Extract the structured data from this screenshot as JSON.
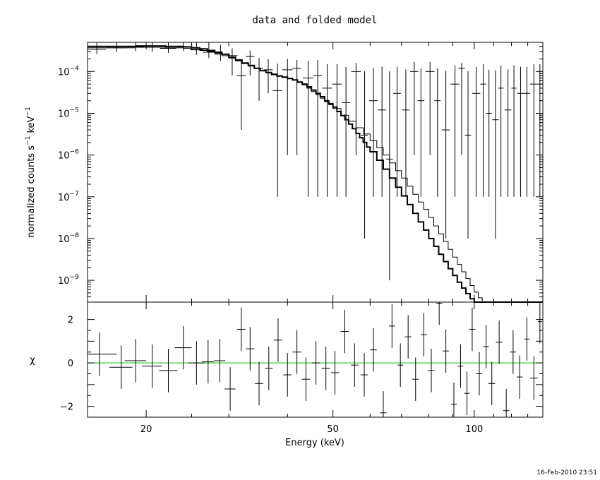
{
  "title": "data and folded model",
  "timestamp": "16-Feb-2010 23:51",
  "colors": {
    "axes": "#000000",
    "model": "#000000",
    "zero_line": "#00c000"
  },
  "chart_data": [
    {
      "type": "scatter",
      "panel": "spectrum",
      "ylabel": "normalized counts s^-1 keV^-1",
      "ylabel_parts": {
        "main": "normalized counts s",
        "sup1": "−1",
        "mid": " keV",
        "sup2": "−1"
      },
      "xscale": "log",
      "yscale": "log",
      "xlim": [
        15,
        140
      ],
      "ylim": [
        3e-10,
        0.0005
      ],
      "yticks": [
        {
          "value": 0.0001,
          "mant": "10",
          "exp": "−4"
        },
        {
          "value": 1e-05,
          "mant": "10",
          "exp": "−5"
        },
        {
          "value": 1e-06,
          "mant": "10",
          "exp": "−6"
        },
        {
          "value": 1e-07,
          "mant": "10",
          "exp": "−7"
        },
        {
          "value": 1e-08,
          "mant": "10",
          "exp": "−8"
        },
        {
          "value": 1e-09,
          "mant": "10",
          "exp": "−9"
        }
      ],
      "series": [
        {
          "role": "data-errorbars",
          "points": [
            [
              15.7,
              0.00034,
              0.7,
              8e-05,
              0.0003
            ],
            [
              17.3,
              0.00037,
              0.9,
              8e-05,
              0.0003
            ],
            [
              19.0,
              0.00039,
              0.8,
              8e-05,
              0.0003
            ],
            [
              20.6,
              0.00038,
              0.8,
              8e-05,
              0.0003
            ],
            [
              22.3,
              0.00036,
              0.9,
              8e-05,
              0.0003
            ],
            [
              24.0,
              0.00039,
              0.8,
              8e-05,
              0.0003
            ],
            [
              25.6,
              0.00033,
              0.8,
              8e-05,
              0.0003
            ],
            [
              27.2,
              0.00029,
              0.8,
              8e-05,
              0.0002
            ],
            [
              28.8,
              0.00026,
              0.8,
              8e-05,
              0.00018
            ],
            [
              30.5,
              0.00024,
              0.8,
              0.00016,
              0.00012
            ],
            [
              31.9,
              8e-05,
              0.7,
              7.6e-05,
              0.0001
            ],
            [
              33.3,
              0.00023,
              0.7,
              0.00015,
              9e-05
            ],
            [
              34.8,
              0.00012,
              0.7,
              0.0001,
              9e-05
            ],
            [
              36.4,
              0.00011,
              0.8,
              8e-05,
              9e-05
            ],
            [
              38.1,
              3.5e-05,
              0.9,
              3.49e-05,
              0.00012
            ],
            [
              40.0,
              0.00011,
              1.0,
              0.000109,
              9e-05
            ],
            [
              41.9,
              0.00012,
              0.9,
              0.000119,
              7e-05
            ],
            [
              44.3,
              7e-05,
              1.2,
              6.99e-05,
              0.00011
            ],
            [
              46.4,
              8e-05,
              1.0,
              7.99e-05,
              0.00011
            ],
            [
              48.6,
              4e-05,
              1.2,
              3.99e-05,
              0.00011
            ],
            [
              51.0,
              5e-05,
              1.2,
              4.99e-05,
              0.0001
            ],
            [
              53.3,
              1.8e-05,
              1.1,
              1.79e-05,
              0.00011
            ],
            [
              56.0,
              0.0001,
              1.3,
              9.9e-05,
              6e-05
            ],
            [
              58.4,
              3e-06,
              1.0,
              2.99e-06,
              0.0001
            ],
            [
              61.0,
              2e-05,
              1.3,
              1.99e-05,
              0.0001
            ],
            [
              63.6,
              1.2e-05,
              1.3,
              1.19e-05,
              0.00012
            ],
            [
              66.0,
              8e-07,
              1.1,
              7.99e-07,
              0.0001
            ],
            [
              68.5,
              3e-05,
              1.3,
              2.99e-05,
              0.0001
            ],
            [
              71.5,
              1.2e-05,
              1.3,
              1.19e-05,
              0.0001
            ],
            [
              74.5,
              0.0001,
              1.5,
              9.9e-05,
              7e-05
            ],
            [
              77.0,
              2e-05,
              1.3,
              1.99e-05,
              0.0001
            ],
            [
              80.5,
              0.0001,
              1.8,
              9.9e-05,
              7e-05
            ],
            [
              83.5,
              2e-05,
              1.3,
              1.99e-05,
              0.0001
            ],
            [
              87.0,
              4e-06,
              1.7,
              3.99e-06,
              0.0001
            ],
            [
              91.0,
              5e-05,
              2.0,
              4.99e-05,
              9e-05
            ],
            [
              94.0,
              0.00012,
              1.5,
              0.000119,
              4e-05
            ],
            [
              97.0,
              3e-06,
              1.5,
              2.99e-06,
              0.0001
            ],
            [
              101.0,
              3e-05,
              2.0,
              2.99e-05,
              0.0001
            ],
            [
              104.5,
              5e-05,
              1.5,
              4.99e-05,
              0.0001
            ],
            [
              107.5,
              1e-05,
              1.5,
              9.9e-06,
              0.0001
            ],
            [
              111.0,
              7e-06,
              1.8,
              6.99e-06,
              0.0001
            ],
            [
              114.0,
              4e-05,
              1.5,
              3.99e-05,
              0.0001
            ],
            [
              118.0,
              1.2e-05,
              2.0,
              1.19e-05,
              0.0001
            ],
            [
              121.5,
              4e-05,
              1.5,
              3.99e-05,
              0.0001
            ],
            [
              125.5,
              3e-05,
              2.0,
              2.99e-05,
              0.0001
            ],
            [
              129.5,
              3e-05,
              2.0,
              2.99e-05,
              0.0001
            ],
            [
              134.0,
              5e-05,
              2.5,
              4.99e-05,
              0.0001
            ],
            [
              138.0,
              5e-05,
              1.5,
              4.99e-05,
              0.0001
            ]
          ]
        },
        {
          "role": "model-thick-step",
          "x": [
            15,
            16,
            17,
            18,
            19,
            20,
            21,
            22,
            23,
            24,
            25,
            26,
            27,
            28,
            29,
            30,
            31,
            32,
            33,
            34,
            35,
            36,
            37,
            38,
            39,
            40,
            41,
            42,
            43,
            44,
            45,
            46,
            47,
            48,
            49,
            50,
            51,
            52,
            53,
            54,
            55,
            56,
            57,
            58,
            59,
            60,
            62,
            64,
            66,
            68,
            70,
            72,
            74,
            76,
            78,
            80,
            82,
            84,
            86,
            88,
            90,
            92,
            94,
            96,
            98,
            100,
            102,
            104,
            106,
            108,
            110,
            112,
            114,
            116,
            118,
            120,
            122,
            124,
            126,
            128,
            130,
            132,
            134,
            136,
            138,
            140
          ],
          "y": [
            0.0004,
            0.0004,
            0.0004,
            0.0004,
            0.00041,
            0.00041,
            0.00041,
            0.0004,
            0.0004,
            0.00039,
            0.00037,
            0.00035,
            0.00032,
            0.00029,
            0.00026,
            0.00022,
            0.00019,
            0.00016,
            0.00014,
            0.00012,
            0.000105,
            9.5e-05,
            8.5e-05,
            7.8e-05,
            7.3e-05,
            6.8e-05,
            6.3e-05,
            5.6e-05,
            5e-05,
            4.3e-05,
            3.6e-05,
            3e-05,
            2.5e-05,
            2e-05,
            1.7e-05,
            1.4e-05,
            1.1e-05,
            8.8e-06,
            7e-06,
            5.5e-06,
            4.3e-06,
            3.3e-06,
            2.6e-06,
            2e-06,
            1.55e-06,
            1.2e-06,
            7.5e-07,
            4.6e-07,
            2.8e-07,
            1.7e-07,
            1.05e-07,
            6.5e-08,
            4e-08,
            2.5e-08,
            1.6e-08,
            1e-08,
            6.5e-09,
            4.2e-09,
            2.8e-09,
            1.9e-09,
            1.3e-09,
            9e-10,
            6.5e-10,
            4.8e-10,
            3.6e-10,
            3e-10,
            3e-10,
            3e-10,
            3e-10,
            3e-10,
            3e-10,
            3e-10,
            3e-10,
            3e-10,
            3e-10,
            3e-10,
            3e-10,
            3e-10,
            3e-10,
            3e-10,
            3e-10,
            3e-10,
            3e-10,
            3e-10,
            3e-10,
            3e-10
          ]
        },
        {
          "role": "model-thin-step",
          "x": [
            15,
            16,
            17,
            18,
            19,
            20,
            21,
            22,
            23,
            24,
            25,
            26,
            27,
            28,
            29,
            30,
            31,
            32,
            33,
            34,
            35,
            36,
            37,
            38,
            39,
            40,
            41,
            42,
            43,
            44,
            45,
            46,
            47,
            48,
            49,
            50,
            52,
            54,
            56,
            58,
            60,
            62,
            64,
            66,
            68,
            70,
            72,
            74,
            76,
            78,
            80,
            82,
            84,
            86,
            88,
            90,
            92,
            94,
            96,
            98,
            100,
            102,
            104,
            106,
            108,
            110,
            112,
            114,
            116,
            118,
            120,
            122,
            124,
            126,
            128,
            130,
            132,
            134,
            136,
            138,
            140
          ],
          "y": [
            0.00037,
            0.00037,
            0.00037,
            0.00037,
            0.00038,
            0.00038,
            0.00038,
            0.00037,
            0.00037,
            0.00036,
            0.00034,
            0.00032,
            0.0003,
            0.00027,
            0.00024,
            0.00021,
            0.00018,
            0.000155,
            0.000135,
            0.00012,
            0.000105,
            9.5e-05,
            8.8e-05,
            8e-05,
            7.5e-05,
            7e-05,
            6.3e-05,
            5.5e-05,
            4.8e-05,
            4e-05,
            3.3e-05,
            2.8e-05,
            2.3e-05,
            1.9e-05,
            1.6e-05,
            1.3e-05,
            9e-06,
            6.5e-06,
            4.5e-06,
            3.2e-06,
            2.2e-06,
            1.5e-06,
            1e-06,
            6.5e-07,
            4.2e-07,
            2.8e-07,
            1.8e-07,
            1.15e-07,
            7.5e-08,
            5e-08,
            3.2e-08,
            2e-08,
            1.3e-08,
            8.5e-09,
            5.5e-09,
            3.6e-09,
            2.4e-09,
            1.6e-09,
            1.1e-09,
            7.5e-10,
            5.2e-10,
            3.8e-10,
            3e-10,
            3e-10,
            3e-10,
            3e-10,
            3e-10,
            3e-10,
            3e-10,
            3e-10,
            3e-10,
            3e-10,
            3e-10,
            3e-10,
            3e-10,
            3e-10,
            3e-10,
            3e-10,
            3e-10,
            3e-10,
            3e-10
          ]
        }
      ]
    },
    {
      "type": "scatter",
      "panel": "residuals",
      "xlabel": "Energy (keV)",
      "ylabel": "χ",
      "xscale": "log",
      "xlim": [
        15,
        140
      ],
      "ylim": [
        -2.5,
        2.8
      ],
      "xticks": [
        {
          "value": 20,
          "label": "20"
        },
        {
          "value": 50,
          "label": "50"
        },
        {
          "value": 100,
          "label": "100"
        }
      ],
      "yticks": [
        {
          "value": 2,
          "label": "2"
        },
        {
          "value": 0,
          "label": "0"
        },
        {
          "value": -2,
          "label": "−2"
        }
      ],
      "zero_line": 0,
      "points": [
        [
          15.9,
          0.4,
          1.4,
          1.0
        ],
        [
          17.7,
          -0.2,
          1.0,
          1.0
        ],
        [
          19.0,
          0.1,
          1.0,
          1.0
        ],
        [
          20.6,
          -0.15,
          1.0,
          1.0
        ],
        [
          22.3,
          -0.35,
          1.0,
          1.0
        ],
        [
          24.0,
          0.7,
          1.0,
          1.0
        ],
        [
          25.6,
          0.0,
          1.0,
          1.0
        ],
        [
          27.1,
          0.05,
          0.8,
          1.0
        ],
        [
          28.7,
          0.1,
          0.8,
          1.0
        ],
        [
          30.2,
          -1.2,
          0.8,
          1.0
        ],
        [
          31.9,
          1.55,
          0.7,
          1.0
        ],
        [
          33.3,
          0.65,
          0.7,
          1.0
        ],
        [
          34.8,
          -0.95,
          0.7,
          1.0
        ],
        [
          36.5,
          -0.25,
          0.7,
          1.0
        ],
        [
          38.2,
          1.05,
          0.8,
          1.0
        ],
        [
          40.0,
          -0.55,
          0.8,
          1.0
        ],
        [
          41.9,
          0.5,
          0.9,
          1.0
        ],
        [
          43.8,
          -0.75,
          0.9,
          1.0
        ],
        [
          46.0,
          0.0,
          0.9,
          1.0
        ],
        [
          48.3,
          -0.25,
          1.0,
          1.0
        ],
        [
          50.5,
          -0.45,
          1.0,
          1.0
        ],
        [
          53.0,
          1.45,
          1.1,
          1.0
        ],
        [
          55.6,
          -0.1,
          1.0,
          1.0
        ],
        [
          58.3,
          -0.55,
          1.0,
          1.0
        ],
        [
          61.0,
          0.6,
          1.0,
          1.0
        ],
        [
          64.0,
          -2.3,
          1.0,
          1.0
        ],
        [
          66.8,
          1.7,
          1.0,
          1.0
        ],
        [
          69.6,
          -0.1,
          1.0,
          1.0
        ],
        [
          72.3,
          1.2,
          1.2,
          1.0
        ],
        [
          75.0,
          -0.75,
          1.2,
          1.0
        ],
        [
          78.1,
          1.3,
          1.2,
          1.0
        ],
        [
          81.0,
          -0.35,
          1.3,
          1.0
        ],
        [
          84.2,
          2.75,
          1.3,
          1.0
        ],
        [
          87.0,
          0.55,
          1.3,
          1.0
        ],
        [
          90.5,
          -1.9,
          1.3,
          1.0
        ],
        [
          93.5,
          -0.15,
          1.3,
          1.0
        ],
        [
          96.5,
          -1.4,
          1.3,
          1.0
        ],
        [
          99.0,
          1.55,
          1.5,
          1.0
        ],
        [
          102.5,
          -0.5,
          1.5,
          1.0
        ],
        [
          106.0,
          0.75,
          1.5,
          1.0
        ],
        [
          109.0,
          -0.95,
          1.8,
          1.0
        ],
        [
          113.0,
          0.95,
          1.8,
          1.0
        ],
        [
          117.0,
          -2.2,
          1.8,
          1.0
        ],
        [
          121.0,
          0.5,
          1.8,
          1.0
        ],
        [
          125.0,
          -0.65,
          1.8,
          1.0
        ],
        [
          129.5,
          1.1,
          1.8,
          1.0
        ],
        [
          134.0,
          -0.7,
          2.5,
          1.0
        ],
        [
          138.0,
          1.9,
          1.5,
          1.0
        ]
      ]
    }
  ]
}
